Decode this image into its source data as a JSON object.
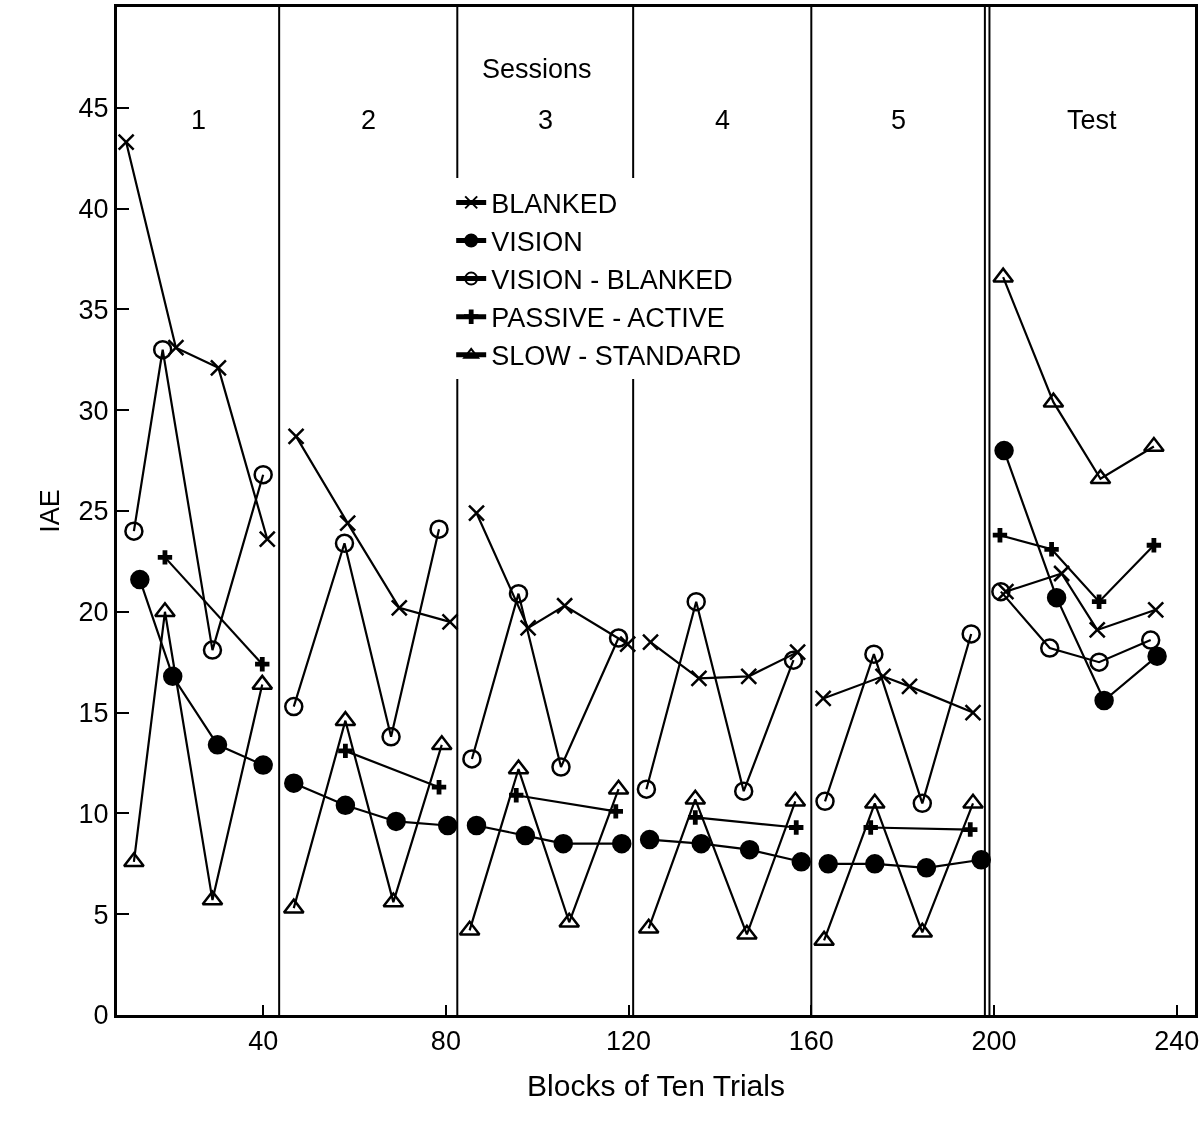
{
  "chart_data": {
    "type": "line",
    "xlabel": "Blocks of Ten Trials",
    "ylabel": "IAE",
    "xlim": [
      8,
      244
    ],
    "xticks": [
      40,
      80,
      120,
      160,
      200,
      240
    ],
    "ylim": [
      0,
      50
    ],
    "yticks": [
      0,
      5,
      10,
      15,
      20,
      25,
      30,
      35,
      40,
      45
    ],
    "grid": false,
    "legend": "top",
    "line_style": "solid",
    "annotations": [
      "Sessions",
      "1",
      "2",
      "3",
      "4",
      "5",
      "Test"
    ],
    "ref_lines": [
      {
        "axis": "x",
        "value": 43.5
      },
      {
        "axis": "x",
        "value": 82.5
      },
      {
        "axis": "x",
        "value": 121
      },
      {
        "axis": "x",
        "value": 160
      },
      {
        "axis": "x",
        "value": 198
      },
      {
        "axis": "x",
        "value": 199
      }
    ],
    "series": [
      {
        "name": "BLANKED",
        "color": "#000000",
        "marker": "x",
        "x": [
          10,
          20.9,
          30.2,
          40.9,
          null,
          47.2,
          58.5,
          69.8,
          80.9,
          null,
          86.7,
          98,
          106,
          119.8,
          null,
          124.8,
          135.4,
          146.3,
          157,
          null,
          162.6,
          175.7,
          181.5,
          195.4,
          null,
          202.6,
          214.8,
          222.6,
          235.4
        ],
        "values": [
          43.3,
          33.1,
          32.1,
          23.6,
          null,
          28.7,
          24.4,
          20.2,
          19.5,
          null,
          24.9,
          19.2,
          20.3,
          18.4,
          null,
          18.5,
          16.7,
          16.8,
          18.0,
          null,
          15.7,
          16.8,
          16.3,
          15.0,
          null,
          21.0,
          21.9,
          19.1,
          20.1
        ]
      },
      {
        "name": "VISION",
        "color": "#000000",
        "marker": "circle",
        "x": [
          13,
          20.2,
          30,
          40,
          null,
          46.7,
          58,
          69.1,
          80.4,
          null,
          86.7,
          97.4,
          105.7,
          118.5,
          null,
          124.6,
          135.9,
          146.5,
          157.8,
          null,
          163.7,
          173.9,
          185.2,
          197.2,
          null,
          202.2,
          213.7,
          224.1,
          235.7
        ],
        "values": [
          21.6,
          16.8,
          13.4,
          12.4,
          null,
          11.5,
          10.4,
          9.6,
          9.4,
          null,
          9.4,
          8.9,
          8.5,
          8.5,
          null,
          8.7,
          8.5,
          8.2,
          7.6,
          null,
          7.5,
          7.5,
          7.3,
          7.7,
          null,
          28.0,
          20.7,
          15.6,
          17.8
        ]
      },
      {
        "name": "VISION - BLANKED",
        "color": "#000000",
        "marker": "circle-open",
        "x": [
          11.7,
          18,
          28.9,
          40,
          null,
          46.7,
          57.8,
          68,
          78.5,
          null,
          85.7,
          95.9,
          105.2,
          117.8,
          null,
          123.9,
          134.8,
          145.2,
          156.1,
          null,
          163,
          173.7,
          184.3,
          195,
          null,
          201.5,
          212.2,
          223,
          234.3
        ],
        "values": [
          24.0,
          33.0,
          18.1,
          26.8,
          null,
          15.3,
          23.4,
          13.8,
          24.1,
          null,
          12.7,
          20.9,
          12.3,
          18.7,
          null,
          11.2,
          20.5,
          11.1,
          17.6,
          null,
          10.6,
          17.9,
          10.5,
          18.9,
          null,
          21.0,
          18.2,
          17.5,
          18.6
        ]
      },
      {
        "name": "PASSIVE - ACTIVE",
        "color": "#000000",
        "marker": "cross",
        "x": [
          18.5,
          39.8,
          null,
          58,
          78.5,
          null,
          95.4,
          117.2,
          null,
          134.6,
          156.7,
          null,
          173,
          194.8,
          null,
          201.3,
          212.6,
          223,
          235
        ],
        "values": [
          22.7,
          17.4,
          null,
          13.1,
          11.3,
          null,
          10.9,
          10.1,
          null,
          9.8,
          9.3,
          null,
          9.3,
          9.2,
          null,
          23.8,
          23.1,
          20.5,
          23.3
        ]
      },
      {
        "name": "SLOW - STANDARD",
        "color": "#000000",
        "marker": "triangle-open",
        "x": [
          11.7,
          18.5,
          28.9,
          39.8,
          null,
          46.7,
          58,
          68.5,
          79.1,
          null,
          85.2,
          95.9,
          107,
          117.8,
          null,
          124.4,
          134.6,
          145.9,
          156.5,
          null,
          162.8,
          173.9,
          184.3,
          195.4,
          null,
          202,
          213,
          223.3,
          235
        ],
        "values": [
          7.6,
          20.0,
          5.7,
          16.4,
          null,
          5.3,
          14.6,
          5.6,
          13.4,
          null,
          4.2,
          12.2,
          4.6,
          11.2,
          null,
          4.3,
          10.7,
          4.0,
          10.6,
          null,
          3.7,
          10.5,
          4.1,
          10.5,
          null,
          36.6,
          30.4,
          26.6,
          28.2
        ]
      }
    ]
  }
}
